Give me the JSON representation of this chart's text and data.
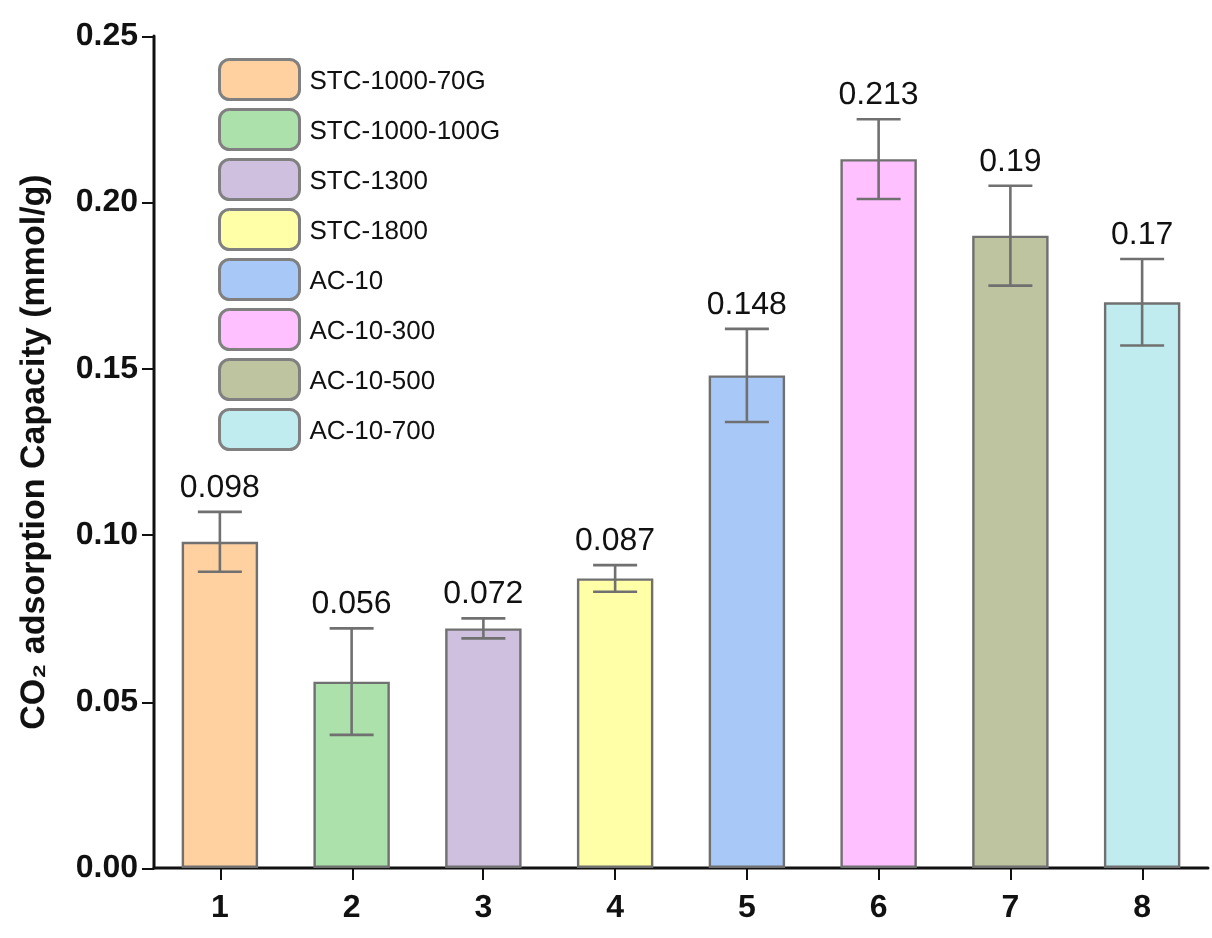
{
  "chart_data": {
    "type": "bar",
    "ylabel": "CO₂ adsorption Capacity (mmol/g)",
    "categories": [
      "1",
      "2",
      "3",
      "4",
      "5",
      "6",
      "7",
      "8"
    ],
    "series": [
      {
        "name": "STC-1000-70G",
        "color": "#ffd0a0",
        "values": [
          0.098,
          null,
          null,
          null,
          null,
          null,
          null,
          null
        ],
        "errors": [
          0.009,
          null,
          null,
          null,
          null,
          null,
          null,
          null
        ]
      },
      {
        "name": "STC-1000-100G",
        "color": "#ade1ab",
        "values": [
          null,
          0.056,
          null,
          null,
          null,
          null,
          null,
          null
        ],
        "errors": [
          null,
          0.016,
          null,
          null,
          null,
          null,
          null,
          null
        ]
      },
      {
        "name": "STC-1300",
        "color": "#cfc0e0",
        "values": [
          null,
          null,
          0.072,
          null,
          null,
          null,
          null,
          null
        ],
        "errors": [
          null,
          null,
          0.003,
          null,
          null,
          null,
          null,
          null
        ]
      },
      {
        "name": "STC-1800",
        "color": "#ffffa8",
        "values": [
          null,
          null,
          null,
          0.087,
          null,
          null,
          null,
          null
        ],
        "errors": [
          null,
          null,
          null,
          0.004,
          null,
          null,
          null,
          null
        ]
      },
      {
        "name": "AC-10",
        "color": "#a8c8f8",
        "values": [
          null,
          null,
          null,
          null,
          0.148,
          null,
          null,
          null
        ],
        "errors": [
          null,
          null,
          null,
          null,
          0.014,
          null,
          null,
          null
        ]
      },
      {
        "name": "AC-10-300",
        "color": "#ffc0ff",
        "values": [
          null,
          null,
          null,
          null,
          null,
          0.213,
          null,
          null
        ],
        "errors": [
          null,
          null,
          null,
          null,
          null,
          0.012,
          null,
          null
        ]
      },
      {
        "name": "AC-10-500",
        "color": "#bec3a0",
        "values": [
          null,
          null,
          null,
          null,
          null,
          null,
          0.19,
          null
        ],
        "errors": [
          null,
          null,
          null,
          null,
          null,
          null,
          0.015,
          null
        ]
      },
      {
        "name": "AC-10-700",
        "color": "#c0ecf0",
        "values": [
          null,
          null,
          null,
          null,
          null,
          null,
          null,
          0.17
        ],
        "errors": [
          null,
          null,
          null,
          null,
          null,
          null,
          null,
          0.013
        ]
      }
    ],
    "ylim": [
      0,
      0.25
    ],
    "yticks": [
      {
        "value": 0,
        "label": "0.00"
      },
      {
        "value": 0.05,
        "label": "0.05"
      },
      {
        "value": 0.1,
        "label": "0.10"
      },
      {
        "value": 0.15,
        "label": "0.15"
      },
      {
        "value": 0.2,
        "label": "0.20"
      },
      {
        "value": 0.25,
        "label": "0.25"
      }
    ],
    "data_labels": true,
    "legend": "top left",
    "grid": false
  }
}
